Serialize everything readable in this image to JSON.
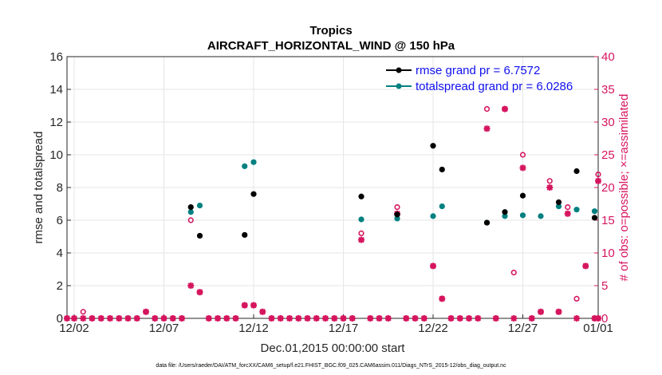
{
  "colors": {
    "rmse": "#000000",
    "spread": "#008080",
    "obs": "#d6155f",
    "legend_text": "#1010ee",
    "grid": "#e6e6e6",
    "axis": "#262626"
  },
  "chart_data": {
    "type": "scatter",
    "title": "Tropics",
    "subtitle": "AIRCRAFT_HORIZONTAL_WIND @ 150 hPa",
    "xlabel": "Dec.01,2015 00:00:00 start",
    "ylabel_left": "rmse and totalspread",
    "ylabel_right": "# of obs: o=possible; ×=assimilated",
    "footnote": "data file: /Users/raeder/DAI/ATM_forcXX/CAM6_setup/f.e21.FHIST_BGC.f09_025.CAM6assim.011/Diags_NTrS_2015-12/obs_diag_output.nc",
    "xlim": [
      1.6,
      31.2
    ],
    "ylim_left": [
      0,
      16
    ],
    "ylim_right": [
      0,
      40
    ],
    "x_ticks": [
      {
        "x": 2,
        "label": "12/02"
      },
      {
        "x": 7,
        "label": "12/07"
      },
      {
        "x": 12,
        "label": "12/12"
      },
      {
        "x": 17,
        "label": "12/17"
      },
      {
        "x": 22,
        "label": "12/22"
      },
      {
        "x": 27,
        "label": "12/27"
      },
      {
        "x": 32,
        "label": "01/01"
      }
    ],
    "y_ticks_left": [
      "0",
      "2",
      "4",
      "6",
      "8",
      "10",
      "12",
      "14",
      "16"
    ],
    "y_ticks_right": [
      "0",
      "5",
      "10",
      "15",
      "20",
      "25",
      "30",
      "35",
      "40"
    ],
    "legend": [
      "rmse grand pr = 6.7572",
      "totalspread grand pr = 6.0286"
    ],
    "series": [
      {
        "name": "rmse",
        "points": [
          [
            8.5,
            6.8
          ],
          [
            9,
            5.05
          ],
          [
            11.5,
            5.1
          ],
          [
            12,
            7.6
          ],
          [
            18,
            7.45
          ],
          [
            20,
            6.35
          ],
          [
            22,
            10.55
          ],
          [
            22.5,
            9.1
          ],
          [
            25,
            5.85
          ],
          [
            26,
            6.5
          ],
          [
            27,
            7.5
          ],
          [
            29,
            7.1
          ],
          [
            30,
            9.0
          ],
          [
            31,
            6.15
          ]
        ]
      },
      {
        "name": "totalspread",
        "points": [
          [
            8.5,
            6.5
          ],
          [
            9,
            6.9
          ],
          [
            11.5,
            9.3
          ],
          [
            12,
            9.55
          ],
          [
            18,
            6.05
          ],
          [
            20,
            6.1
          ],
          [
            22,
            6.25
          ],
          [
            22.5,
            6.85
          ],
          [
            25,
            5.85
          ],
          [
            26,
            6.25
          ],
          [
            27,
            6.3
          ],
          [
            28,
            6.25
          ],
          [
            29,
            6.85
          ],
          [
            30,
            6.65
          ],
          [
            31,
            6.55
          ]
        ]
      },
      {
        "name": "possible",
        "points": [
          [
            1.5,
            0
          ],
          [
            2,
            0
          ],
          [
            2.5,
            1
          ],
          [
            3,
            0
          ],
          [
            3.5,
            0
          ],
          [
            4,
            0
          ],
          [
            4.5,
            0
          ],
          [
            5,
            0
          ],
          [
            5.5,
            0
          ],
          [
            6,
            1
          ],
          [
            6.5,
            0
          ],
          [
            7,
            0
          ],
          [
            7.5,
            0
          ],
          [
            8,
            0
          ],
          [
            8.5,
            15
          ],
          [
            9,
            4
          ],
          [
            9.5,
            0
          ],
          [
            10,
            0
          ],
          [
            10.5,
            0
          ],
          [
            11,
            0
          ],
          [
            11.5,
            2
          ],
          [
            12,
            2
          ],
          [
            12.5,
            1
          ],
          [
            13,
            0
          ],
          [
            13.5,
            0
          ],
          [
            14,
            0
          ],
          [
            14.5,
            0
          ],
          [
            15,
            0
          ],
          [
            15.5,
            0
          ],
          [
            16,
            0
          ],
          [
            16.5,
            0
          ],
          [
            17,
            0
          ],
          [
            17.5,
            0
          ],
          [
            18,
            13
          ],
          [
            18.5,
            0
          ],
          [
            19,
            0
          ],
          [
            19.5,
            0
          ],
          [
            20,
            17
          ],
          [
            20.5,
            0
          ],
          [
            21,
            0
          ],
          [
            21.5,
            0
          ],
          [
            22,
            8
          ],
          [
            22.5,
            3
          ],
          [
            23,
            0
          ],
          [
            23.5,
            0
          ],
          [
            24,
            0
          ],
          [
            24.5,
            0
          ],
          [
            25,
            32
          ],
          [
            25.5,
            0
          ],
          [
            26,
            32
          ],
          [
            26.5,
            7
          ],
          [
            27,
            25
          ],
          [
            27.5,
            0
          ],
          [
            28,
            1
          ],
          [
            28.5,
            21
          ],
          [
            29,
            1
          ],
          [
            29.5,
            17
          ],
          [
            30,
            3
          ],
          [
            30.5,
            8
          ],
          [
            31,
            0
          ],
          [
            31.5,
            22
          ],
          [
            32,
            0
          ]
        ]
      },
      {
        "name": "assimilated",
        "points": [
          [
            1.5,
            0
          ],
          [
            2,
            0
          ],
          [
            2.5,
            0
          ],
          [
            3,
            0
          ],
          [
            3.5,
            0
          ],
          [
            4,
            0
          ],
          [
            4.5,
            0
          ],
          [
            5,
            0
          ],
          [
            5.5,
            0
          ],
          [
            6,
            1
          ],
          [
            6.5,
            0
          ],
          [
            7,
            0
          ],
          [
            7.5,
            0
          ],
          [
            8,
            0
          ],
          [
            8.5,
            5
          ],
          [
            9,
            4
          ],
          [
            9.5,
            0
          ],
          [
            10,
            0
          ],
          [
            10.5,
            0
          ],
          [
            11,
            0
          ],
          [
            11.5,
            2
          ],
          [
            12,
            2
          ],
          [
            12.5,
            1
          ],
          [
            13,
            0
          ],
          [
            13.5,
            0
          ],
          [
            14,
            0
          ],
          [
            14.5,
            0
          ],
          [
            15,
            0
          ],
          [
            15.5,
            0
          ],
          [
            16,
            0
          ],
          [
            16.5,
            0
          ],
          [
            17,
            0
          ],
          [
            17.5,
            0
          ],
          [
            18,
            12
          ],
          [
            18.5,
            0
          ],
          [
            19,
            0
          ],
          [
            19.5,
            0
          ],
          [
            20,
            16
          ],
          [
            20.5,
            0
          ],
          [
            21,
            0
          ],
          [
            21.5,
            0
          ],
          [
            22,
            8
          ],
          [
            22.5,
            3
          ],
          [
            23,
            0
          ],
          [
            23.5,
            0
          ],
          [
            24,
            0
          ],
          [
            24.5,
            0
          ],
          [
            25,
            29
          ],
          [
            25.5,
            0
          ],
          [
            26,
            32
          ],
          [
            26.5,
            0
          ],
          [
            27,
            23
          ],
          [
            27.5,
            0
          ],
          [
            28,
            1
          ],
          [
            28.5,
            20
          ],
          [
            29,
            1
          ],
          [
            29.5,
            16
          ],
          [
            30,
            0
          ],
          [
            30.5,
            8
          ],
          [
            31,
            0
          ],
          [
            31.5,
            21
          ],
          [
            32,
            0
          ]
        ]
      }
    ]
  }
}
